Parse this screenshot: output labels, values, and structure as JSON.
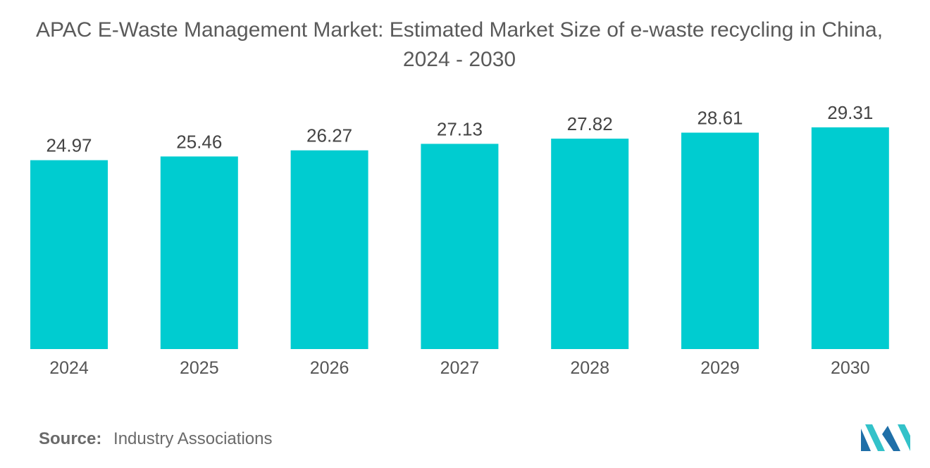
{
  "chart_data": {
    "type": "bar",
    "title": "APAC E-Waste Management Market: Estimated Market Size of e-waste recycling in China,",
    "subtitle": "2024 - 2030",
    "categories": [
      "2024",
      "2025",
      "2026",
      "2027",
      "2028",
      "2029",
      "2030"
    ],
    "values": [
      24.97,
      25.46,
      26.27,
      27.13,
      27.82,
      28.61,
      29.31
    ],
    "value_labels": [
      "24.97",
      "25.46",
      "26.27",
      "27.13",
      "27.82",
      "28.61",
      "29.31"
    ],
    "xlabel": "",
    "ylabel": "",
    "ylim": [
      0,
      33
    ],
    "grid": false,
    "legend": "none",
    "bar_color": "#00CCD0"
  },
  "source": {
    "label": "Source:",
    "text": "Industry Associations"
  },
  "logo": {
    "icon": "mordor-intelligence-logo-icon",
    "colors": [
      "#1F6FA8",
      "#33C2C9"
    ]
  }
}
